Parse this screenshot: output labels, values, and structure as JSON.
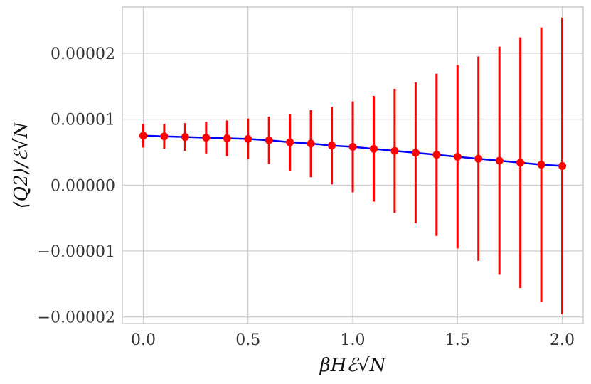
{
  "chart_data": {
    "type": "line",
    "title": "",
    "xlabel": "βHℰ√N",
    "ylabel": "⟨Q2⟩/ℰ√N",
    "xlim": [
      -0.1,
      2.1
    ],
    "ylim": [
      -2.1e-05,
      2.7e-05
    ],
    "grid": true,
    "x_ticks": [
      0.0,
      0.5,
      1.0,
      1.5,
      2.0
    ],
    "x_tick_labels": [
      "0.0",
      "0.5",
      "1.0",
      "1.5",
      "2.0"
    ],
    "y_ticks": [
      -2e-05,
      -1e-05,
      0.0,
      1e-05,
      2e-05
    ],
    "y_tick_labels": [
      "−0.00002",
      "−0.00001",
      "0.00000",
      "0.00001",
      "0.00002"
    ],
    "series": [
      {
        "line_color": "#0000ff",
        "marker_color": "#ff0000",
        "x": [
          0.0,
          0.1,
          0.2,
          0.3,
          0.4,
          0.5,
          0.6,
          0.7,
          0.8,
          0.9,
          1.0,
          1.1,
          1.2,
          1.3,
          1.4,
          1.5,
          1.6,
          1.7,
          1.8,
          1.9,
          2.0
        ],
        "y": [
          7.5e-06,
          7.4e-06,
          7.3e-06,
          7.2e-06,
          7.1e-06,
          7e-06,
          6.8e-06,
          6.5e-06,
          6.3e-06,
          6e-06,
          5.8e-06,
          5.5e-06,
          5.2e-06,
          4.9e-06,
          4.6e-06,
          4.3e-06,
          4e-06,
          3.7e-06,
          3.4e-06,
          3.1e-06,
          2.9e-06
        ],
        "yerr": [
          1.8e-06,
          1.9e-06,
          2.1e-06,
          2.4e-06,
          2.7e-06,
          3.1e-06,
          3.6e-06,
          4.3e-06,
          5.1e-06,
          5.9e-06,
          6.9e-06,
          8e-06,
          9.4e-06,
          1.07e-05,
          1.23e-05,
          1.39e-05,
          1.55e-05,
          1.73e-05,
          1.9e-05,
          2.08e-05,
          2.25e-05
        ]
      }
    ]
  }
}
